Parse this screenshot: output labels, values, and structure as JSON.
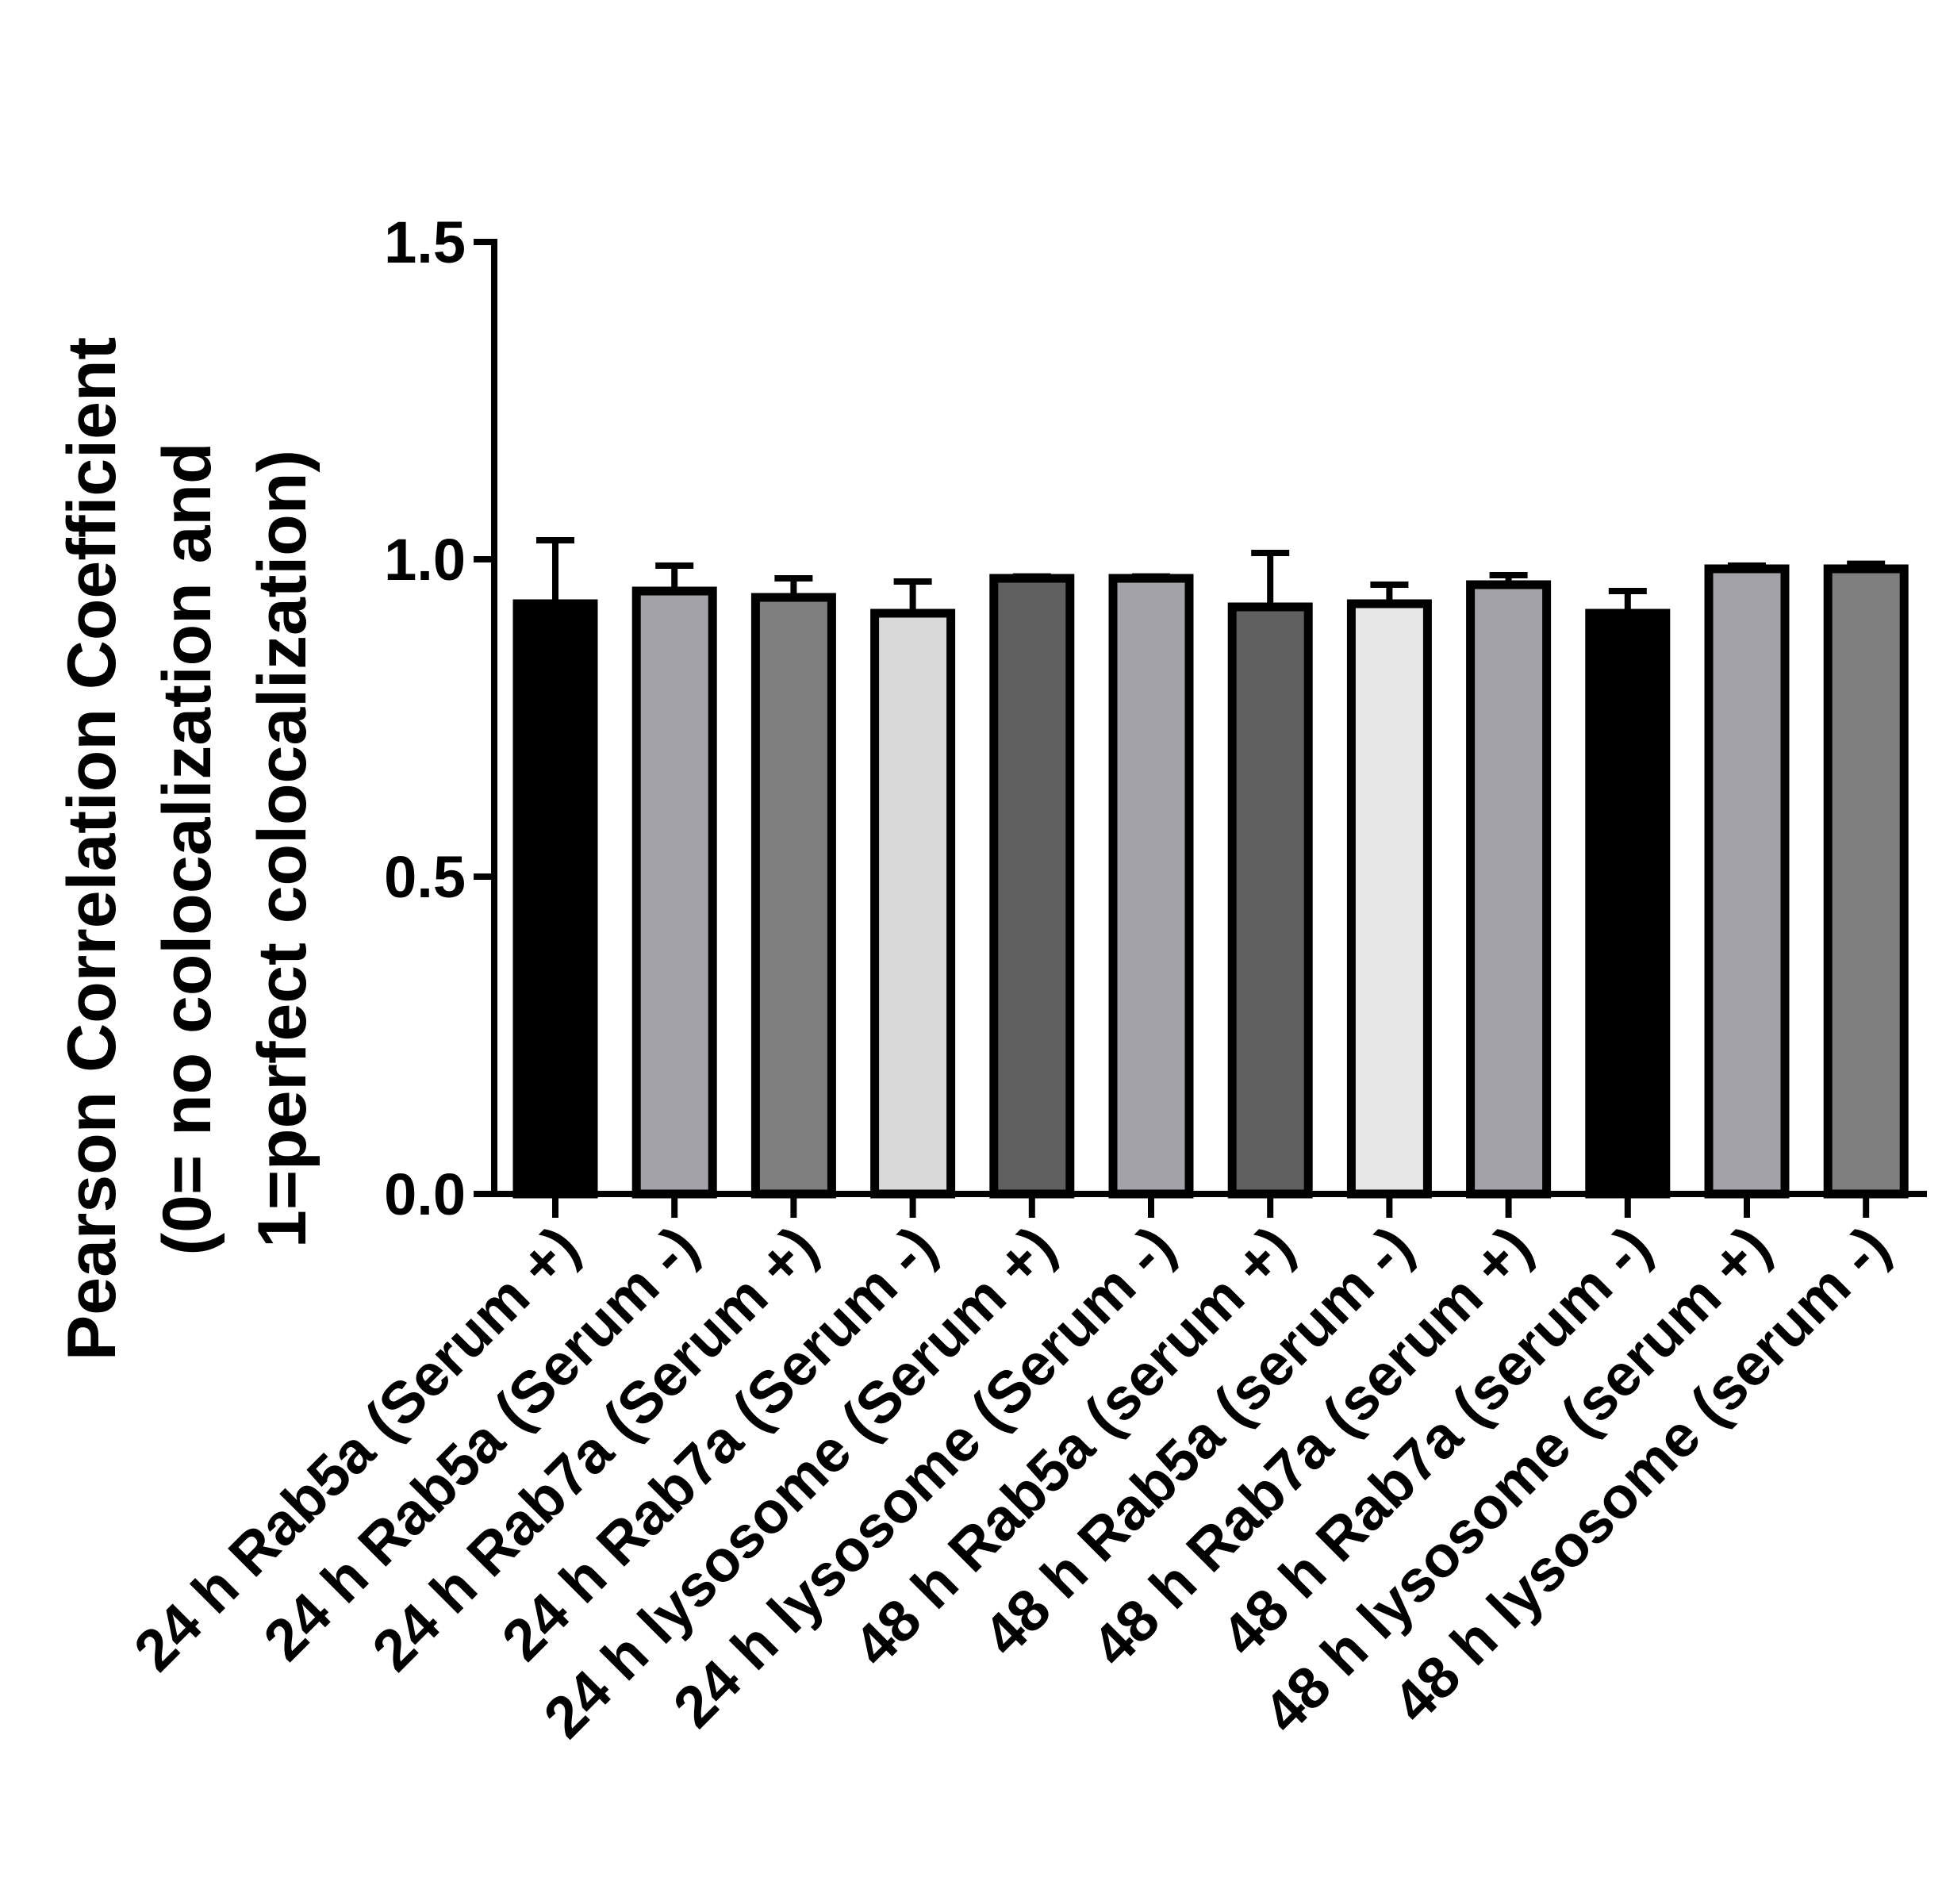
{
  "chart_data": {
    "type": "bar",
    "title": "",
    "xlabel": "",
    "ylabel_lines": [
      "Pearson Correlation Coefficient",
      "(0= no colocalization and",
      "1=perfect colocalization)"
    ],
    "ylim": [
      0,
      1.5
    ],
    "yticks": [
      "0.0",
      "0.5",
      "1.0",
      "1.5"
    ],
    "grid": false,
    "legend": "none",
    "categories": [
      "24 h Rab5a (Serum +)",
      "24 h Rab5a (Serum -)",
      "24 h Rab7a (Serum +)",
      "24 h Rab7a (Serum -)",
      "24 h lysosome (Serum +)",
      "24 h lysosome (Serum -)",
      "48 h Rab5a (serum +)",
      "48 h Rab5a (serum -)",
      "48 h Rab7a (serum +)",
      "48 h Rab7a (serum -)",
      "48 h lysosome (serum +)",
      "48 h lysosome (serum -)"
    ],
    "values": [
      0.93,
      0.95,
      0.94,
      0.915,
      0.97,
      0.97,
      0.925,
      0.93,
      0.96,
      0.915,
      0.985,
      0.985
    ],
    "errors": [
      0.1,
      0.04,
      0.03,
      0.05,
      0.003,
      0.003,
      0.085,
      0.03,
      0.015,
      0.035,
      0.005,
      0.008
    ],
    "colors": [
      "#000000",
      "#a3a2a8",
      "#7f7f7f",
      "#d9d9d9",
      "#5f5f5f",
      "#a3a2a8",
      "#5f5f5f",
      "#e6e6e6",
      "#a3a2a8",
      "#000000",
      "#a3a2a8",
      "#7f7f7f"
    ]
  }
}
